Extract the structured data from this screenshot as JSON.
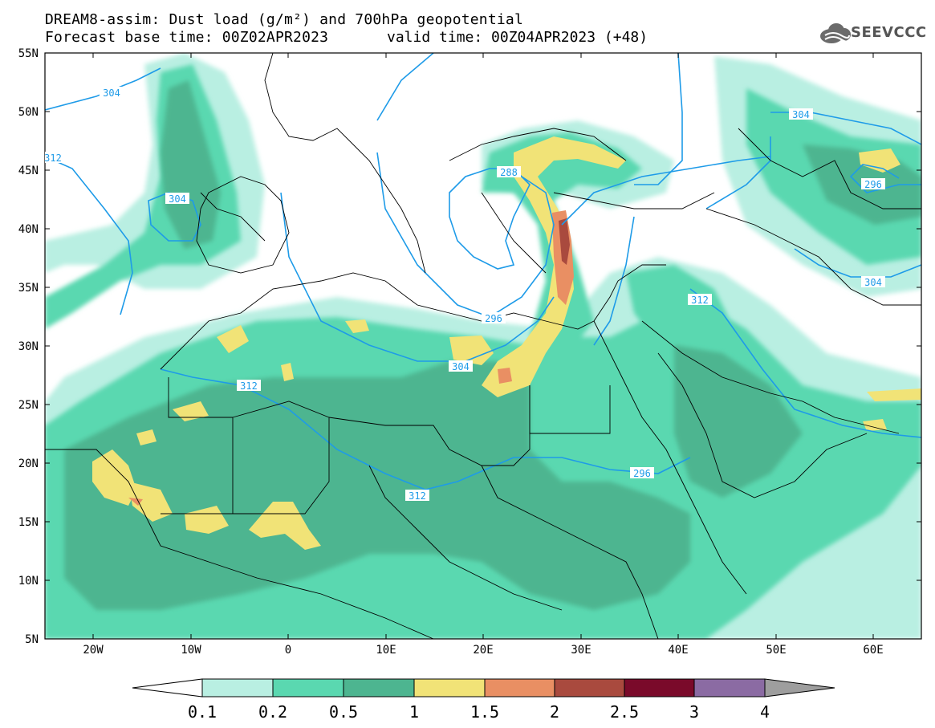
{
  "header": {
    "title_line1": "DREAM8-assim: Dust load (g/m²) and 700hPa geopotential",
    "title_line2": "Forecast base time: 00Z02APR2023",
    "valid_time": "valid time: 00Z04APR2023 (+48)",
    "logo_text": "SEEVCCC",
    "logo_icon": "cloud-logo-icon"
  },
  "map": {
    "lat_labels": [
      "55N",
      "50N",
      "45N",
      "40N",
      "35N",
      "30N",
      "25N",
      "20N",
      "15N",
      "10N",
      "5N"
    ],
    "lon_labels": [
      "20W",
      "10W",
      "0",
      "10E",
      "20E",
      "30E",
      "40E",
      "50E",
      "60E"
    ],
    "contour_labels": [
      "304",
      "312",
      "304",
      "296",
      "288",
      "304",
      "296",
      "304",
      "312",
      "312",
      "312",
      "304",
      "296",
      "304"
    ],
    "colors": {
      "ocean_land_bg": "#ffffff",
      "contour_line": "#1e9be8",
      "border_line": "#000000"
    }
  },
  "colorbar": {
    "labels": [
      "0.1",
      "0.2",
      "0.5",
      "1",
      "1.5",
      "2",
      "2.5",
      "3",
      "4"
    ],
    "colors": [
      "#b9efe2",
      "#5ad8b0",
      "#4db590",
      "#f1e377",
      "#e98f63",
      "#a94a3e",
      "#7a0a2a",
      "#8b6ba3"
    ],
    "low_end_color": "#ffffff",
    "high_end_color": "#9e9e9e"
  }
}
